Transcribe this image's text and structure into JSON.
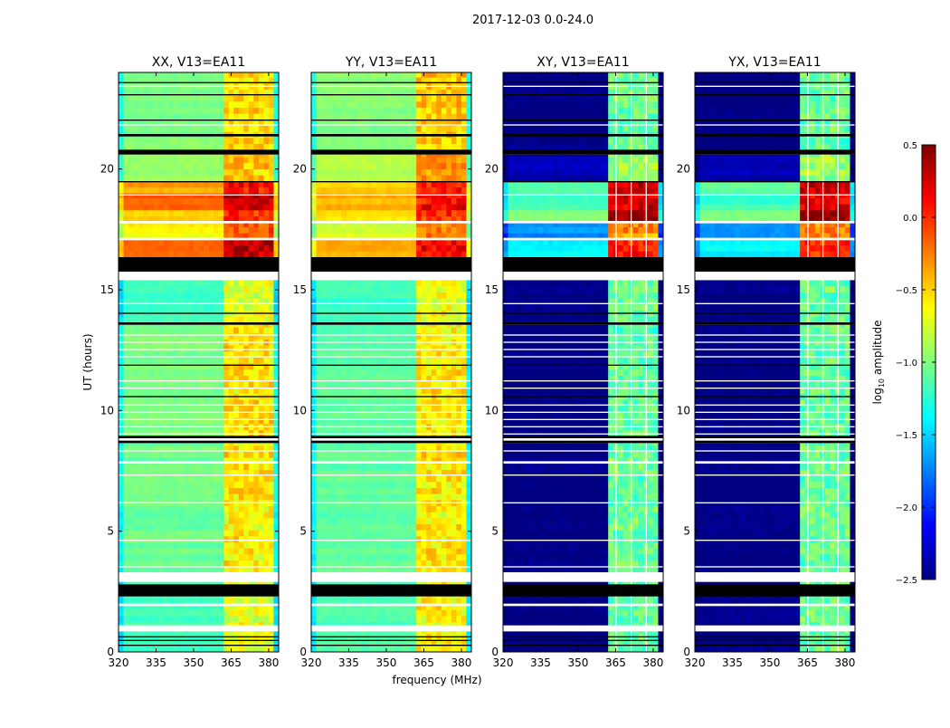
{
  "chart_data": {
    "type": "heatmap",
    "title": "2017-12-03 0.0-24.0",
    "xlabel": "frequency (MHz)",
    "ylabel": "UT (hours)",
    "xlim": [
      320,
      384
    ],
    "ylim": [
      0,
      24
    ],
    "xticks": [
      "320",
      "335",
      "350",
      "365",
      "380"
    ],
    "xtick_values": [
      320,
      335,
      350,
      365,
      380
    ],
    "yticks": [
      "0",
      "5",
      "10",
      "15",
      "20"
    ],
    "ytick_values": [
      0,
      5,
      10,
      15,
      20
    ],
    "panels": [
      {
        "key": "xx",
        "title": "XX, V13=EA11"
      },
      {
        "key": "yy",
        "title": "YY, V13=EA11"
      },
      {
        "key": "xy",
        "title": "XY, V13=EA11"
      },
      {
        "key": "yx",
        "title": "YX, V13=EA11"
      }
    ],
    "colorbar": {
      "label": "log10 amplitude",
      "label_main": "log",
      "label_sub": "10",
      "label_rest": " amplitude",
      "range": [
        -2.5,
        0.5
      ],
      "ticks": [
        "0.5",
        "0.0",
        "−0.5",
        "−1.0",
        "−1.5",
        "−2.0",
        "−2.5"
      ],
      "tick_values": [
        0.5,
        0.0,
        -0.5,
        -1.0,
        -1.5,
        -2.0,
        -2.5
      ],
      "colormap": "jet"
    },
    "segments": [
      {
        "t": [
          0.0,
          3.0
        ],
        "xx": -1.15,
        "yy": -1.15,
        "xy": -2.5,
        "yx": -2.5
      },
      {
        "t": [
          3.3,
          8.65
        ],
        "xx": -1.05,
        "yy": -1.1,
        "xy": -2.5,
        "yx": -2.5
      },
      {
        "t": [
          8.95,
          13.55
        ],
        "xx": -1.0,
        "yy": -1.1,
        "xy": -2.5,
        "yx": -2.5
      },
      {
        "t": [
          13.65,
          15.4
        ],
        "xx": -1.2,
        "yy": -1.2,
        "xy": -2.5,
        "yx": -2.5
      },
      {
        "t": [
          16.35,
          17.1
        ],
        "xx": -0.2,
        "yy": -0.4,
        "xy": -1.4,
        "yx": -1.4
      },
      {
        "t": [
          17.1,
          17.8
        ],
        "xx": -0.6,
        "yy": -0.75,
        "xy": -1.7,
        "yx": -1.7
      },
      {
        "t": [
          17.8,
          18.3
        ],
        "xx": -0.45,
        "yy": -0.55,
        "xy": -1.0,
        "yx": -1.0
      },
      {
        "t": [
          18.3,
          19.0
        ],
        "xx": -0.15,
        "yy": -0.4,
        "xy": -1.2,
        "yx": -1.2
      },
      {
        "t": [
          19.0,
          19.5
        ],
        "xx": -0.35,
        "yy": -0.5,
        "xy": -1.1,
        "yx": -1.1
      },
      {
        "t": [
          19.5,
          20.6
        ],
        "xx": -0.9,
        "yy": -0.85,
        "xy": -2.35,
        "yx": -2.35
      },
      {
        "t": [
          20.8,
          24.0
        ],
        "xx": -1.0,
        "yy": -1.0,
        "xy": -2.5,
        "yx": -2.5
      }
    ],
    "rfi_band_mhz": [
      363,
      381
    ],
    "band_boost": {
      "xx": 0.4,
      "yy": 0.45,
      "xy": 1.35,
      "yx": 1.35
    },
    "edge_dip_mhz": [
      [
        320,
        322
      ],
      [
        381,
        384
      ]
    ],
    "flagged_black_hours": [
      [
        0.25,
        0.3
      ],
      [
        0.45,
        0.5
      ],
      [
        0.6,
        0.65
      ],
      [
        2.3,
        2.8
      ],
      [
        8.65,
        8.75
      ],
      [
        8.85,
        8.95
      ],
      [
        10.55,
        10.6
      ],
      [
        11.85,
        11.9
      ],
      [
        13.55,
        13.65
      ],
      [
        14.0,
        14.05
      ],
      [
        15.75,
        16.35
      ],
      [
        19.45,
        19.5
      ],
      [
        20.6,
        20.8
      ],
      [
        21.35,
        21.45
      ],
      [
        22.0,
        22.05
      ],
      [
        23.05,
        23.1
      ],
      [
        23.55,
        23.6
      ]
    ],
    "missing_white_hours": [
      [
        0.85,
        1.1
      ],
      [
        1.9,
        2.0
      ],
      [
        2.9,
        3.3
      ],
      [
        3.5,
        3.55
      ],
      [
        4.6,
        4.65
      ],
      [
        6.15,
        6.2
      ],
      [
        7.3,
        7.35
      ],
      [
        7.8,
        7.9
      ],
      [
        8.3,
        8.35
      ],
      [
        9.0,
        9.05
      ],
      [
        9.3,
        9.35
      ],
      [
        9.6,
        9.65
      ],
      [
        9.9,
        9.95
      ],
      [
        10.2,
        10.25
      ],
      [
        10.9,
        10.95
      ],
      [
        11.2,
        11.25
      ],
      [
        12.2,
        12.25
      ],
      [
        12.5,
        12.55
      ],
      [
        12.8,
        12.85
      ],
      [
        13.1,
        13.15
      ],
      [
        14.4,
        14.45
      ],
      [
        15.4,
        15.75
      ],
      [
        17.05,
        17.15
      ],
      [
        17.75,
        17.85
      ],
      [
        18.9,
        18.95
      ],
      [
        21.8,
        21.85
      ],
      [
        23.4,
        23.45
      ]
    ]
  }
}
